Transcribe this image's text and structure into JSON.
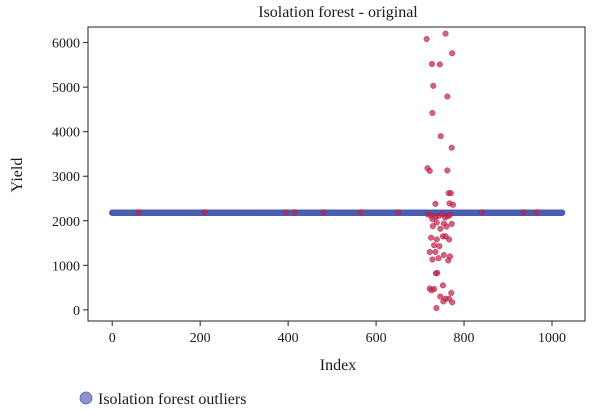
{
  "chart_data": {
    "type": "scatter",
    "title": "Isolation forest - original",
    "xlabel": "Index",
    "ylabel": "Yield",
    "xlim": [
      -55,
      1075
    ],
    "ylim": [
      -250,
      6350
    ],
    "xticks": [
      0,
      200,
      400,
      600,
      800,
      1000
    ],
    "yticks": [
      0,
      1000,
      2000,
      3000,
      4000,
      5000,
      6000
    ],
    "grid": false,
    "legend": {
      "position": "bottom-left",
      "entries": [
        "Isolation forest outliers"
      ]
    },
    "colors": {
      "base": "#4a5fb3",
      "outlier": "#c8234b",
      "legend_marker": "#8a93d0"
    },
    "series": [
      {
        "role": "base",
        "x_range": [
          0,
          1023
        ],
        "y": 2180,
        "count": 1024
      },
      {
        "role": "outliers",
        "points": [
          [
            60,
            2190
          ],
          [
            210,
            2190
          ],
          [
            395,
            2190
          ],
          [
            415,
            2190
          ],
          [
            480,
            2190
          ],
          [
            565,
            2190
          ],
          [
            650,
            2190
          ],
          [
            840,
            2190
          ],
          [
            935,
            2190
          ],
          [
            965,
            2190
          ],
          [
            715,
            6080
          ],
          [
            758,
            6200
          ],
          [
            773,
            5760
          ],
          [
            727,
            5520
          ],
          [
            745,
            5510
          ],
          [
            730,
            5030
          ],
          [
            762,
            4790
          ],
          [
            728,
            4420
          ],
          [
            747,
            3900
          ],
          [
            772,
            3640
          ],
          [
            717,
            3180
          ],
          [
            722,
            3120
          ],
          [
            762,
            3130
          ],
          [
            765,
            2620
          ],
          [
            770,
            2620
          ],
          [
            735,
            2380
          ],
          [
            767,
            2390
          ],
          [
            775,
            2360
          ],
          [
            718,
            2140
          ],
          [
            725,
            2120
          ],
          [
            735,
            2080
          ],
          [
            742,
            2110
          ],
          [
            750,
            2140
          ],
          [
            757,
            2080
          ],
          [
            763,
            2100
          ],
          [
            768,
            2130
          ],
          [
            728,
            2040
          ],
          [
            738,
            1960
          ],
          [
            754,
            1940
          ],
          [
            772,
            1930
          ],
          [
            729,
            1880
          ],
          [
            746,
            1820
          ],
          [
            760,
            1870
          ],
          [
            725,
            1620
          ],
          [
            738,
            1580
          ],
          [
            752,
            1650
          ],
          [
            766,
            1580
          ],
          [
            758,
            1650
          ],
          [
            732,
            1450
          ],
          [
            744,
            1430
          ],
          [
            722,
            1300
          ],
          [
            735,
            1300
          ],
          [
            754,
            1230
          ],
          [
            768,
            1200
          ],
          [
            742,
            1160
          ],
          [
            728,
            1130
          ],
          [
            764,
            1110
          ],
          [
            736,
            820
          ],
          [
            739,
            830
          ],
          [
            752,
            550
          ],
          [
            722,
            480
          ],
          [
            732,
            470
          ],
          [
            771,
            380
          ],
          [
            726,
            440
          ],
          [
            746,
            300
          ],
          [
            758,
            250
          ],
          [
            766,
            250
          ],
          [
            773,
            170
          ],
          [
            753,
            190
          ],
          [
            737,
            40
          ]
        ]
      }
    ]
  }
}
